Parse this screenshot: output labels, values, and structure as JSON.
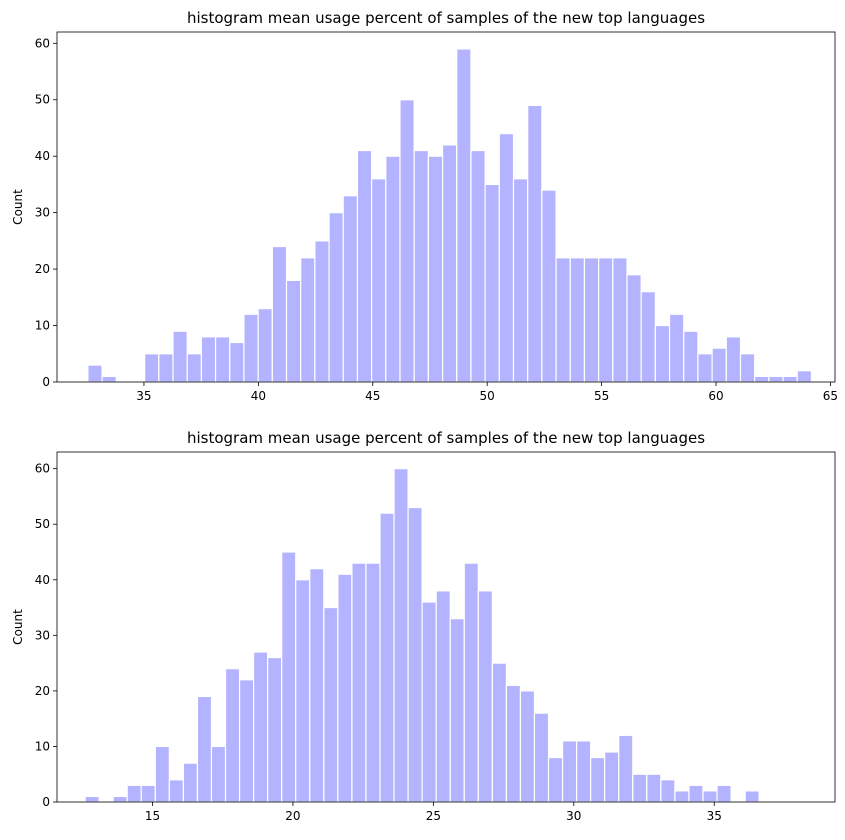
{
  "chart_data": [
    {
      "type": "bar",
      "title": "histogram mean usage percent of samples of the new top languages",
      "ylabel": "Count",
      "xlabel": "",
      "xlim": [
        31.2,
        65.2
      ],
      "ylim": [
        0,
        62
      ],
      "xticks": [
        35,
        40,
        45,
        50,
        55,
        60,
        65
      ],
      "yticks": [
        0,
        10,
        20,
        30,
        40,
        50,
        60
      ],
      "bin_width": 0.62,
      "bin_start": 32.55,
      "counts": [
        3,
        1,
        0,
        0,
        5,
        5,
        9,
        5,
        8,
        8,
        7,
        12,
        13,
        24,
        18,
        22,
        25,
        30,
        33,
        41,
        36,
        40,
        50,
        41,
        40,
        42,
        59,
        41,
        35,
        44,
        36,
        49,
        34,
        22,
        22,
        22,
        22,
        22,
        19,
        16,
        10,
        12,
        9,
        5,
        6,
        8,
        5,
        1,
        1,
        1,
        2
      ],
      "color": "#b3b3ff"
    },
    {
      "type": "bar",
      "title": "histogram mean usage percent of samples of the new top languages",
      "ylabel": "Count",
      "xlabel": "",
      "xlim": [
        11.6,
        39.3
      ],
      "ylim": [
        0,
        63
      ],
      "xticks": [
        15,
        20,
        25,
        30,
        35
      ],
      "yticks": [
        0,
        10,
        20,
        30,
        40,
        50,
        60
      ],
      "bin_width": 0.5,
      "bin_start": 12.6,
      "counts": [
        1,
        0,
        1,
        3,
        3,
        10,
        4,
        7,
        19,
        10,
        24,
        22,
        27,
        26,
        45,
        40,
        42,
        35,
        41,
        43,
        43,
        52,
        60,
        53,
        36,
        38,
        33,
        43,
        38,
        25,
        21,
        20,
        16,
        8,
        11,
        11,
        8,
        9,
        12,
        5,
        5,
        4,
        2,
        3,
        2,
        3,
        0,
        2
      ],
      "color": "#b3b3ff"
    }
  ]
}
